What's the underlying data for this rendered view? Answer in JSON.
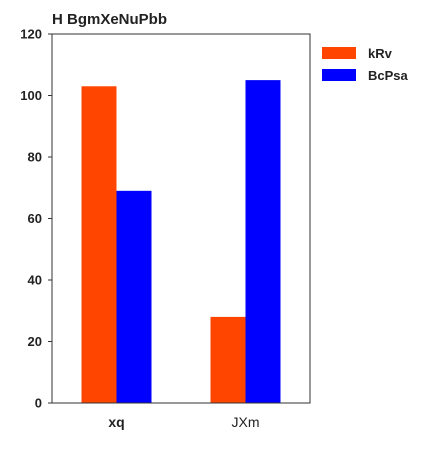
{
  "chart_data": {
    "type": "bar",
    "title": "H BgmXeNuPbb",
    "xlabel": "",
    "ylabel": "",
    "categories": [
      "xq",
      "JXm"
    ],
    "series": [
      {
        "name": "kRv",
        "values": [
          103,
          28
        ],
        "color": "#ff4500"
      },
      {
        "name": "BcPsa",
        "values": [
          69,
          105
        ],
        "color": "#0000ff"
      }
    ],
    "ylim": [
      0,
      120
    ],
    "yticks": [
      0,
      20,
      40,
      60,
      80,
      100,
      120
    ],
    "grid": false,
    "legend_position": "top-right"
  }
}
